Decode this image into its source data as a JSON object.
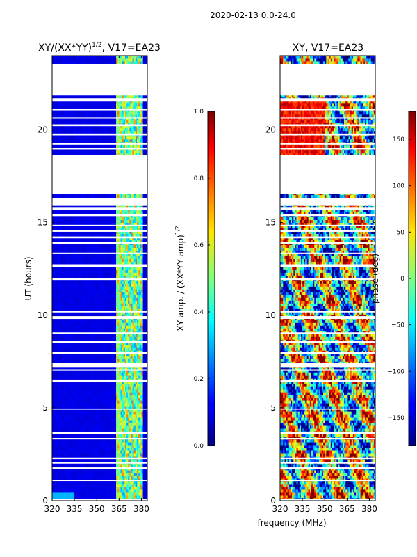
{
  "figure": {
    "suptitle": "2020-02-13 0.0-24.0",
    "xlabel_shared": "frequency (MHz)"
  },
  "colors": {
    "white_gap": "#ffffff",
    "frame": "#000000"
  },
  "chart_data": [
    {
      "type": "heatmap",
      "title_main": "XY/(XX*YY)",
      "title_sup": "1/2",
      "title_tail": ", V17=EA23",
      "ylabel": "UT (hours)",
      "xlim": [
        320,
        384
      ],
      "ylim": [
        0,
        24
      ],
      "xticks": [
        320,
        335,
        350,
        365,
        380
      ],
      "yticks": [
        0,
        5,
        10,
        15,
        20
      ],
      "colorbar": {
        "label_main": "XY amp. / (XX*YY amp)",
        "label_sup": "1/2",
        "range": [
          0.0,
          1.0
        ],
        "ticks": [
          "0.0",
          "0.2",
          "0.4",
          "0.6",
          "0.8",
          "1.0"
        ],
        "tick_values": [
          0.0,
          0.2,
          0.4,
          0.6,
          0.8,
          1.0
        ]
      },
      "bright_band_mhz": [
        363,
        381
      ],
      "gaps_hours": [
        [
          0.0,
          0.1
        ],
        [
          1.05,
          1.12
        ],
        [
          1.7,
          1.8
        ],
        [
          2.0,
          2.08
        ],
        [
          2.25,
          2.3
        ],
        [
          3.3,
          3.38
        ],
        [
          3.6,
          3.7
        ],
        [
          4.9,
          4.96
        ],
        [
          6.4,
          6.5
        ],
        [
          7.0,
          7.08
        ],
        [
          7.2,
          7.4
        ],
        [
          7.9,
          8.0
        ],
        [
          8.5,
          8.6
        ],
        [
          9.0,
          9.08
        ],
        [
          9.8,
          9.95
        ],
        [
          10.15,
          10.25
        ],
        [
          11.9,
          11.98
        ],
        [
          12.6,
          12.75
        ],
        [
          13.3,
          13.38
        ],
        [
          13.85,
          13.95
        ],
        [
          14.15,
          14.25
        ],
        [
          14.5,
          14.58
        ],
        [
          14.8,
          14.88
        ],
        [
          15.35,
          15.45
        ],
        [
          15.7,
          15.8
        ],
        [
          15.9,
          16.3
        ],
        [
          16.55,
          18.65
        ],
        [
          18.95,
          19.02
        ],
        [
          19.2,
          19.27
        ],
        [
          19.7,
          19.8
        ],
        [
          20.2,
          20.3
        ],
        [
          20.6,
          20.68
        ],
        [
          21.05,
          21.12
        ],
        [
          21.55,
          21.7
        ],
        [
          21.85,
          23.55
        ]
      ]
    },
    {
      "type": "heatmap",
      "title_main": "XY, V17=EA23",
      "xlim": [
        320,
        384
      ],
      "ylim": [
        0,
        24
      ],
      "xticks": [
        320,
        335,
        350,
        365,
        380
      ],
      "yticks": [
        0,
        5,
        10,
        15,
        20
      ],
      "colorbar": {
        "label_main": "phase (deg)",
        "range": [
          -180,
          180
        ],
        "ticks": [
          "150",
          "100",
          "50",
          "0",
          "−50",
          "−100",
          "−150"
        ],
        "tick_values": [
          150,
          100,
          50,
          0,
          -50,
          -100,
          -150
        ]
      },
      "gaps_hours": [
        [
          0.0,
          0.1
        ],
        [
          1.05,
          1.12
        ],
        [
          1.7,
          1.8
        ],
        [
          2.0,
          2.08
        ],
        [
          2.25,
          2.3
        ],
        [
          3.3,
          3.38
        ],
        [
          3.6,
          3.7
        ],
        [
          4.9,
          4.96
        ],
        [
          6.4,
          6.5
        ],
        [
          7.0,
          7.08
        ],
        [
          7.2,
          7.4
        ],
        [
          7.9,
          8.0
        ],
        [
          8.5,
          8.6
        ],
        [
          9.0,
          9.08
        ],
        [
          9.8,
          9.95
        ],
        [
          10.15,
          10.25
        ],
        [
          11.9,
          11.98
        ],
        [
          12.6,
          12.75
        ],
        [
          13.3,
          13.38
        ],
        [
          13.85,
          13.95
        ],
        [
          14.15,
          14.25
        ],
        [
          14.5,
          14.58
        ],
        [
          14.8,
          14.88
        ],
        [
          15.35,
          15.45
        ],
        [
          15.7,
          15.8
        ],
        [
          15.9,
          16.3
        ],
        [
          16.55,
          18.65
        ],
        [
          18.95,
          19.02
        ],
        [
          19.2,
          19.27
        ],
        [
          19.7,
          19.8
        ],
        [
          20.2,
          20.3
        ],
        [
          20.6,
          20.68
        ],
        [
          21.05,
          21.12
        ],
        [
          21.55,
          21.7
        ],
        [
          21.85,
          23.55
        ]
      ]
    }
  ]
}
